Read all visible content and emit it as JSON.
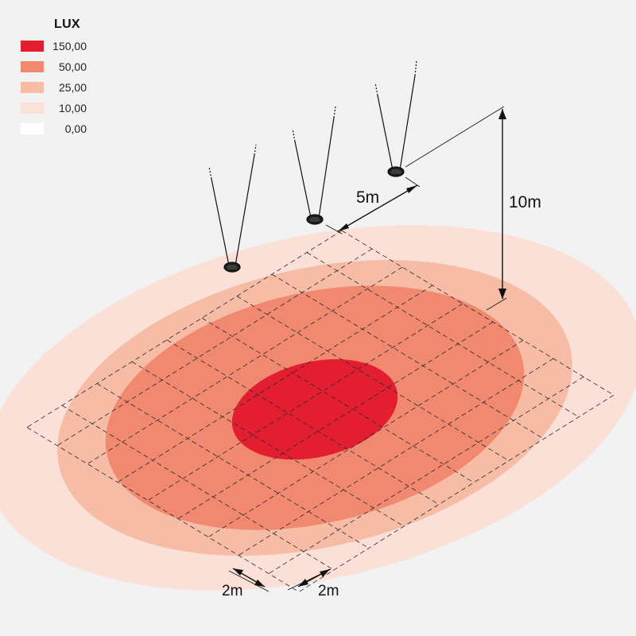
{
  "legend": {
    "title": "LUX",
    "items": [
      {
        "label": "150,00",
        "color": "#e41e31"
      },
      {
        "label": "50,00",
        "color": "#f0896f"
      },
      {
        "label": "25,00",
        "color": "#f7bca5"
      },
      {
        "label": "10,00",
        "color": "#fbe0d7"
      },
      {
        "label": "0,00",
        "color": "#ffffff"
      }
    ]
  },
  "dimensions": {
    "spacing": "5m",
    "height": "10m",
    "grid_x": "2m",
    "grid_y": "2m"
  },
  "background": "#f2f2f2"
}
